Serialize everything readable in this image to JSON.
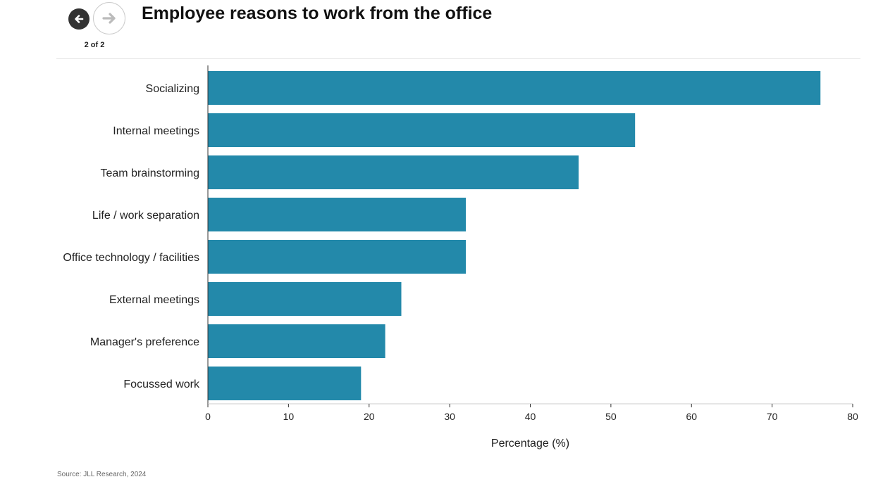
{
  "header": {
    "title": "Employee reasons to work from the office",
    "page_counter": "2 of 2",
    "prev_icon": "arrow-left-icon",
    "next_icon": "arrow-right-icon"
  },
  "colors": {
    "bar": "#2389aa",
    "axis": "#333333",
    "text": "#222222"
  },
  "chart_data": {
    "type": "bar",
    "orientation": "horizontal",
    "title": "Employee reasons to work from the office",
    "xlabel": "Percentage (%)",
    "ylabel": "",
    "categories": [
      "Socializing",
      "Internal meetings",
      "Team brainstorming",
      "Life / work separation",
      "Office technology / facilities",
      "External meetings",
      "Manager's preference",
      "Focussed work"
    ],
    "values": [
      76,
      53,
      46,
      32,
      32,
      24,
      22,
      19
    ],
    "xlim": [
      0,
      80
    ],
    "xticks": [
      0,
      10,
      20,
      30,
      40,
      50,
      60,
      70,
      80
    ],
    "grid": false,
    "legend": "none"
  },
  "footer": {
    "source": "Source: JLL Research, 2024"
  }
}
